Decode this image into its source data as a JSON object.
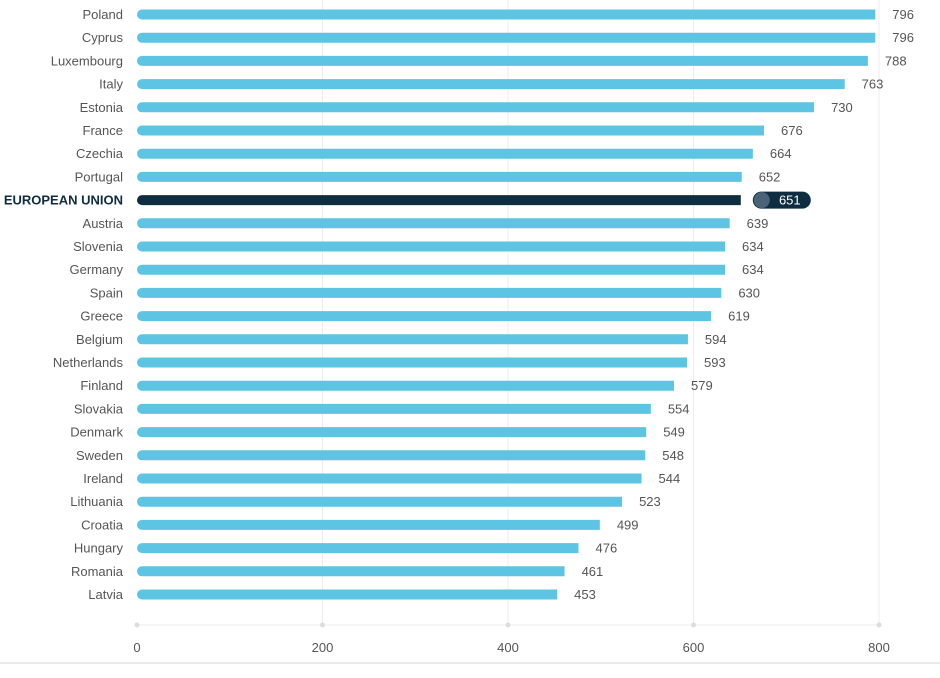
{
  "chart_data": {
    "type": "bar",
    "orientation": "horizontal",
    "title": "",
    "xlabel": "",
    "ylabel": "",
    "xlim": [
      0,
      800
    ],
    "x_ticks": [
      0,
      200,
      400,
      600,
      800
    ],
    "grid": true,
    "categories": [
      "Poland",
      "Cyprus",
      "Luxembourg",
      "Italy",
      "Estonia",
      "France",
      "Czechia",
      "Portugal",
      "EUROPEAN UNION",
      "Austria",
      "Slovenia",
      "Germany",
      "Spain",
      "Greece",
      "Belgium",
      "Netherlands",
      "Finland",
      "Slovakia",
      "Denmark",
      "Sweden",
      "Ireland",
      "Lithuania",
      "Croatia",
      "Hungary",
      "Romania",
      "Latvia"
    ],
    "values": [
      796,
      796,
      788,
      763,
      730,
      676,
      664,
      652,
      651,
      639,
      634,
      634,
      630,
      619,
      594,
      593,
      579,
      554,
      549,
      548,
      544,
      523,
      499,
      476,
      461,
      453
    ],
    "highlight": "EUROPEAN UNION",
    "colors": {
      "bar": "#5ec4e3",
      "highlight": "#0f2d40",
      "highlight_knob": "#4a6378",
      "grid": "#ececec"
    }
  }
}
